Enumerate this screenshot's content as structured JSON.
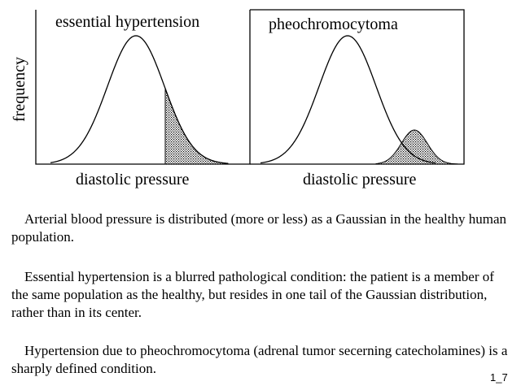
{
  "panels": [
    {
      "title": "essential hypertension",
      "xlabel": "diastolic pressure"
    },
    {
      "title": "pheochromocytoma",
      "xlabel": "diastolic pressure"
    }
  ],
  "ylabel": "frequency",
  "paragraphs": [
    "Arterial blood pressure is distributed (more or less) as a Gaussian in the healthy human population.",
    "Essential hypertension is a blurred pathological condition: the patient is a member of the same population as the healthy, but resides in one tail of the Gaussian distribution, rather than in its center.",
    "Hypertension due to pheochromocytoma (adrenal tumor secerning catecholamines) is a sharply defined condition."
  ],
  "slide_id": "1_7"
}
